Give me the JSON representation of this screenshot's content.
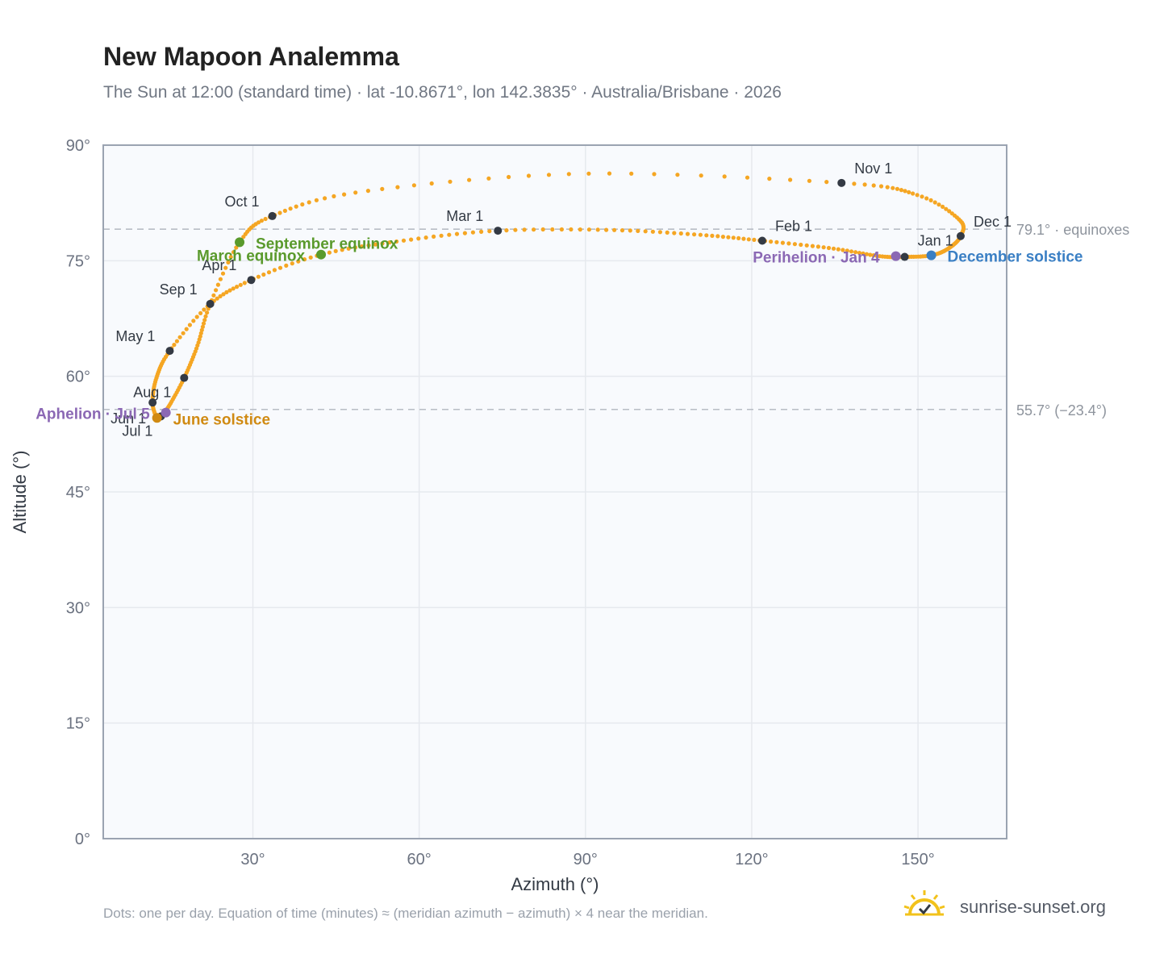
{
  "page": {
    "title": "New Mapoon Analemma",
    "subtitle": "The Sun at 12:00 (standard time) · lat -10.8671°, lon 142.3835° · Australia/Brisbane · 2026",
    "footnote": "Dots: one per day. Equation of time (minutes) ≈ (meridian azimuth − azimuth) × 4 near the meridian.",
    "brand": "sunrise-sunset.org",
    "brand_icon": "sun-check-icon"
  },
  "colors": {
    "curve": "#F5A623",
    "month_marker": "#343a44",
    "equinox": "#5a9a2c",
    "june_solstice": "#d08a12",
    "december_solstice": "#3a7fc4",
    "apsis": "#8b68b4",
    "plot_bg": "#f8fafd",
    "grid": "#e6e9ee",
    "axis": "#9aa3b1",
    "ref_line": "#b8bdc5"
  },
  "chart_data": {
    "type": "scatter",
    "xlabel": "Azimuth (°)",
    "ylabel": "Altitude (°)",
    "xlim": [
      3,
      166
    ],
    "ylim": [
      0,
      90
    ],
    "xticks": [
      30,
      60,
      90,
      120,
      150
    ],
    "yticks": [
      0,
      15,
      30,
      45,
      60,
      75,
      90
    ],
    "xtick_labels": [
      "30°",
      "60°",
      "90°",
      "120°",
      "150°"
    ],
    "ytick_labels": [
      "0°",
      "15°",
      "30°",
      "45°",
      "60°",
      "75°",
      "90°"
    ],
    "grid": true,
    "curve_anchors": [
      {
        "date": "Jan 1",
        "az": 147.6,
        "alt": 75.5
      },
      {
        "date": "Jan 10",
        "az": 143.0,
        "alt": 75.6
      },
      {
        "date": "Jan 20",
        "az": 134.5,
        "alt": 76.6
      },
      {
        "date": "Feb 1",
        "az": 121.9,
        "alt": 77.6
      },
      {
        "date": "Feb 10",
        "az": 110.0,
        "alt": 78.4
      },
      {
        "date": "Feb 20",
        "az": 94.0,
        "alt": 79.0
      },
      {
        "date": "Mar 1",
        "az": 74.2,
        "alt": 78.9
      },
      {
        "date": "Mar 10",
        "az": 57.0,
        "alt": 77.6
      },
      {
        "date": "Mar 20",
        "az": 42.3,
        "alt": 75.8
      },
      {
        "date": "Apr 1",
        "az": 29.7,
        "alt": 72.5
      },
      {
        "date": "Apr 15",
        "az": 22.0,
        "alt": 69.2
      },
      {
        "date": "May 1",
        "az": 15.0,
        "alt": 63.3
      },
      {
        "date": "May 15",
        "az": 12.6,
        "alt": 59.8
      },
      {
        "date": "Jun 1",
        "az": 11.9,
        "alt": 56.6
      },
      {
        "date": "Jun 21",
        "az": 12.7,
        "alt": 54.6
      },
      {
        "date": "Jul 1",
        "az": 13.4,
        "alt": 54.8
      },
      {
        "date": "Jul 15",
        "az": 14.9,
        "alt": 56.2
      },
      {
        "date": "Aug 1",
        "az": 17.6,
        "alt": 59.8
      },
      {
        "date": "Aug 15",
        "az": 20.0,
        "alt": 64.0
      },
      {
        "date": "Sep 1",
        "az": 22.3,
        "alt": 69.4
      },
      {
        "date": "Sep 23",
        "az": 27.6,
        "alt": 77.4
      },
      {
        "date": "Oct 1",
        "az": 33.5,
        "alt": 80.8
      },
      {
        "date": "Oct 10",
        "az": 50.0,
        "alt": 84.0
      },
      {
        "date": "Oct 20",
        "az": 90.0,
        "alt": 86.3
      },
      {
        "date": "Nov 1",
        "az": 136.2,
        "alt": 85.1
      },
      {
        "date": "Nov 10",
        "az": 150.0,
        "alt": 83.5
      },
      {
        "date": "Nov 20",
        "az": 157.5,
        "alt": 80.3
      },
      {
        "date": "Dec 1",
        "az": 157.7,
        "alt": 78.2
      },
      {
        "date": "Dec 10",
        "az": 155.5,
        "alt": 76.6
      },
      {
        "date": "Dec 21",
        "az": 152.4,
        "alt": 75.7
      },
      {
        "date": "Jan 1",
        "az": 147.6,
        "alt": 75.5
      }
    ],
    "daily_point_count": 365,
    "month_markers": [
      {
        "label": "Jan 1",
        "az": 147.6,
        "alt": 75.5
      },
      {
        "label": "Feb 1",
        "az": 121.9,
        "alt": 77.6
      },
      {
        "label": "Mar 1",
        "az": 74.2,
        "alt": 78.9
      },
      {
        "label": "Apr 1",
        "az": 29.7,
        "alt": 72.5
      },
      {
        "label": "May 1",
        "az": 15.0,
        "alt": 63.3
      },
      {
        "label": "Jun 1",
        "az": 11.9,
        "alt": 56.6
      },
      {
        "label": "Jul 1",
        "az": 13.4,
        "alt": 54.8
      },
      {
        "label": "Aug 1",
        "az": 17.6,
        "alt": 59.8
      },
      {
        "label": "Sep 1",
        "az": 22.3,
        "alt": 69.4
      },
      {
        "label": "Oct 1",
        "az": 33.5,
        "alt": 80.8
      },
      {
        "label": "Nov 1",
        "az": 136.2,
        "alt": 85.1
      },
      {
        "label": "Dec 1",
        "az": 157.7,
        "alt": 78.2
      }
    ],
    "events": [
      {
        "label": "March equinox",
        "az": 42.3,
        "alt": 75.8,
        "kind": "equinox"
      },
      {
        "label": "September equinox",
        "az": 27.6,
        "alt": 77.4,
        "kind": "equinox"
      },
      {
        "label": "June solstice",
        "az": 12.7,
        "alt": 54.6,
        "kind": "june_solstice"
      },
      {
        "label": "December solstice",
        "az": 152.4,
        "alt": 75.7,
        "kind": "december_solstice"
      },
      {
        "label": "Aphelion · Jul 5",
        "az": 14.3,
        "alt": 55.3,
        "kind": "apsis"
      },
      {
        "label": "Perihelion · Jan 4",
        "az": 146.0,
        "alt": 75.6,
        "kind": "apsis"
      }
    ],
    "reference_lines": [
      {
        "alt": 79.1,
        "label": "79.1° · equinoxes"
      },
      {
        "alt": 55.7,
        "label": "55.7° (−23.4°)"
      }
    ]
  }
}
